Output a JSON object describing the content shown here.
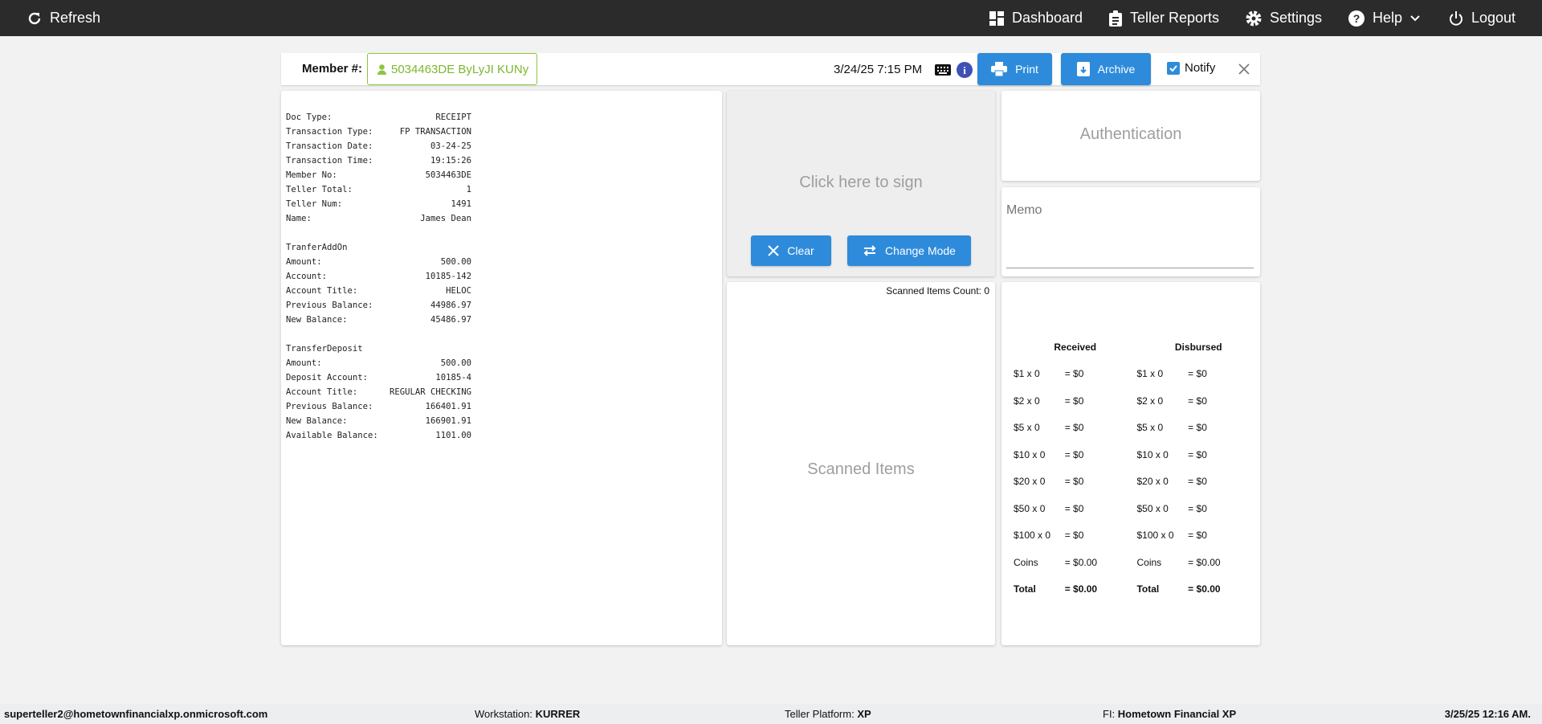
{
  "nav": {
    "refresh": "Refresh",
    "dashboard": "Dashboard",
    "teller_reports": "Teller Reports",
    "settings": "Settings",
    "help": "Help",
    "logout": "Logout"
  },
  "toolbar": {
    "member_label": "Member #:",
    "member_value": "5034463DE ByLyJI KUNy",
    "datetime": "3/24/25 7:15 PM",
    "print": "Print",
    "archive": "Archive",
    "notify": "Notify",
    "notify_checked": true
  },
  "receipt": {
    "header": [
      [
        "Doc Type:",
        "RECEIPT"
      ],
      [
        "Transaction Type:",
        "FP TRANSACTION"
      ],
      [
        "Transaction Date:",
        "03-24-25"
      ],
      [
        "Transaction Time:",
        "19:15:26"
      ],
      [
        "Member No:",
        "5034463DE"
      ],
      [
        "Teller Total:",
        "1"
      ],
      [
        "Teller Num:",
        "1491"
      ],
      [
        "Name:",
        "James Dean"
      ]
    ],
    "section1_title": "TranferAddOn",
    "section1": [
      [
        "Amount:",
        "500.00"
      ],
      [
        "Account:",
        "10185-142"
      ],
      [
        "Account Title:",
        "HELOC"
      ],
      [
        "Previous Balance:",
        "44986.97"
      ],
      [
        "New Balance:",
        "45486.97"
      ]
    ],
    "section2_title": "TransferDeposit",
    "section2": [
      [
        "Amount:",
        "500.00"
      ],
      [
        "Deposit Account:",
        "10185-4"
      ],
      [
        "Account Title:",
        "REGULAR CHECKING"
      ],
      [
        "Previous Balance:",
        "166401.91"
      ],
      [
        "New Balance:",
        "166901.91"
      ],
      [
        "Available Balance:",
        "1101.00"
      ]
    ]
  },
  "sign": {
    "prompt": "Click here to sign",
    "clear": "Clear",
    "change_mode": "Change Mode"
  },
  "scanned": {
    "count_label": "Scanned Items Count: 0",
    "placeholder": "Scanned Items"
  },
  "auth": {
    "label": "Authentication"
  },
  "memo": {
    "label": "Memo"
  },
  "cash": {
    "received_header": "Received",
    "disbursed_header": "Disbursed",
    "rows": [
      {
        "r": "$1 x 0",
        "rv": "= $0",
        "d": "$1 x 0",
        "dv": "= $0"
      },
      {
        "r": "$2 x 0",
        "rv": "= $0",
        "d": "$2 x 0",
        "dv": "= $0"
      },
      {
        "r": "$5 x 0",
        "rv": "= $0",
        "d": "$5 x 0",
        "dv": "= $0"
      },
      {
        "r": "$10 x 0",
        "rv": "= $0",
        "d": "$10 x 0",
        "dv": "= $0"
      },
      {
        "r": "$20 x 0",
        "rv": "= $0",
        "d": "$20 x 0",
        "dv": "= $0"
      },
      {
        "r": "$50 x 0",
        "rv": "= $0",
        "d": "$50 x 0",
        "dv": "= $0"
      },
      {
        "r": "$100 x 0",
        "rv": "= $0",
        "d": "$100 x 0",
        "dv": "= $0"
      },
      {
        "r": "Coins",
        "rv": "= $0.00",
        "d": "Coins",
        "dv": "= $0.00"
      }
    ],
    "total": {
      "r": "Total",
      "rv": "= $0.00",
      "d": "Total",
      "dv": "= $0.00"
    }
  },
  "footer": {
    "user": "superteller2@hometownfinancialxp.onmicrosoft.com",
    "workstation_label": "Workstation:",
    "workstation": "KURRER",
    "platform_label": "Teller Platform:",
    "platform": "XP",
    "fi_label": "FI:",
    "fi": "Hometown Financial XP",
    "datetime": "3/25/25 12:16 AM."
  },
  "colors": {
    "accent": "#2e8bdb",
    "member": "#7cb82f",
    "nav": "#2b2b2b"
  }
}
